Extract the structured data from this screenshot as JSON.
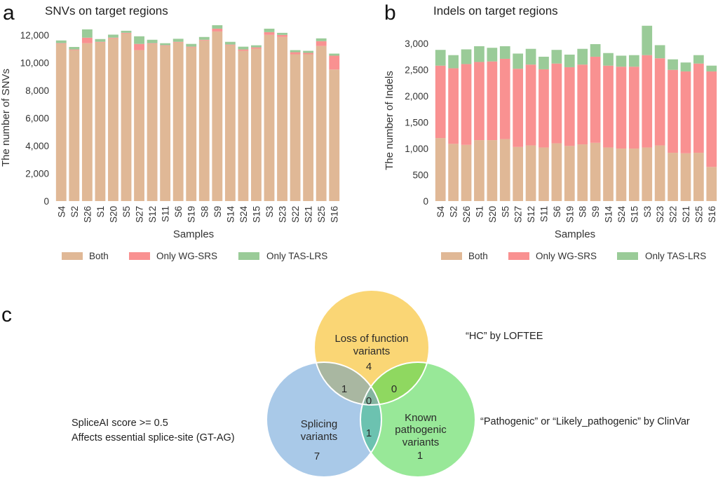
{
  "panels": {
    "a": "a",
    "b": "b",
    "c": "c"
  },
  "colors": {
    "both": "#e0b896",
    "only_wg_srs": "#f99191",
    "only_tas_lrs": "#9acb98",
    "venn_lof": "#fad675",
    "venn_splicing": "#a9c9e8",
    "venn_known": "#98e898",
    "venn_lof_splicing": "#a9b7a1",
    "venn_lof_known": "#8fd860",
    "venn_splicing_known": "#6cc2b0",
    "venn_center": "#84b4a0"
  },
  "chart_data": [
    {
      "id": "snvs",
      "type": "bar",
      "stacked": true,
      "title": "SNVs on target regions",
      "xlabel": "Samples",
      "ylabel": "The number of SNVs",
      "ylim": [
        0,
        12700
      ],
      "yticks": [
        0,
        2000,
        4000,
        6000,
        8000,
        10000,
        12000
      ],
      "ytick_labels": [
        "0",
        "2,000",
        "4,000",
        "6,000",
        "8,000",
        "10,000",
        "12,000"
      ],
      "categories": [
        "S4",
        "S2",
        "S26",
        "S1",
        "S20",
        "S5",
        "S27",
        "S12",
        "S11",
        "S6",
        "S19",
        "S8",
        "S9",
        "S14",
        "S24",
        "S15",
        "S3",
        "S23",
        "S22",
        "S21",
        "S25",
        "S16"
      ],
      "series": [
        {
          "name": "Both",
          "values": [
            11350,
            10900,
            11400,
            11450,
            11750,
            12100,
            10900,
            11350,
            11200,
            11450,
            11100,
            11600,
            12250,
            11250,
            10850,
            11000,
            12000,
            11850,
            10600,
            10600,
            11200,
            9500
          ]
        },
        {
          "name": "Only WG-SRS",
          "values": [
            50,
            50,
            400,
            50,
            50,
            50,
            450,
            50,
            50,
            50,
            50,
            50,
            200,
            50,
            100,
            100,
            200,
            150,
            150,
            100,
            350,
            1000
          ]
        },
        {
          "name": "Only TAS-LRS",
          "values": [
            200,
            180,
            600,
            200,
            220,
            150,
            550,
            250,
            150,
            220,
            200,
            200,
            250,
            200,
            200,
            150,
            250,
            150,
            150,
            150,
            200,
            150
          ]
        }
      ],
      "legend": {
        "position": "bottom",
        "entries": [
          "Both",
          "Only WG-SRS",
          "Only TAS-LRS"
        ]
      },
      "grid": false
    },
    {
      "id": "indels",
      "type": "bar",
      "stacked": true,
      "title": "Indels on target regions",
      "xlabel": "Samples",
      "ylabel": "The number of Indels",
      "ylim": [
        0,
        3350
      ],
      "yticks": [
        0,
        500,
        1000,
        1500,
        2000,
        2500,
        3000
      ],
      "ytick_labels": [
        "0",
        "500",
        "1,000",
        "1,500",
        "2,000",
        "2,500",
        "3,000"
      ],
      "categories": [
        "S4",
        "S2",
        "S26",
        "S1",
        "S20",
        "S5",
        "S27",
        "S12",
        "S11",
        "S6",
        "S19",
        "S8",
        "S9",
        "S14",
        "S24",
        "S15",
        "S3",
        "S23",
        "S22",
        "S21",
        "S25",
        "S16"
      ],
      "series": [
        {
          "name": "Both",
          "values": [
            1200,
            1090,
            1070,
            1160,
            1160,
            1180,
            1030,
            1060,
            1020,
            1100,
            1050,
            1080,
            1110,
            1020,
            1000,
            1000,
            1020,
            1060,
            920,
            910,
            920,
            650
          ]
        },
        {
          "name": "Only WG-SRS",
          "values": [
            1380,
            1440,
            1540,
            1490,
            1500,
            1530,
            1490,
            1540,
            1490,
            1520,
            1500,
            1520,
            1640,
            1560,
            1560,
            1560,
            1760,
            1660,
            1580,
            1560,
            1700,
            1820
          ]
        },
        {
          "name": "Only TAS-LRS",
          "values": [
            300,
            250,
            280,
            300,
            260,
            240,
            290,
            300,
            240,
            260,
            240,
            300,
            240,
            240,
            210,
            220,
            560,
            250,
            200,
            170,
            160,
            110
          ]
        }
      ],
      "legend": {
        "position": "bottom",
        "entries": [
          "Both",
          "Only WG-SRS",
          "Only TAS-LRS"
        ]
      },
      "grid": false
    }
  ],
  "venn": {
    "sets": {
      "lof": {
        "label_line1": "Loss of function",
        "label_line2": "variants",
        "only": "4",
        "criteria": "“HC” by LOFTEE"
      },
      "splicing": {
        "label_line1": "Splicing",
        "label_line2": "variants",
        "only": "7",
        "criteria_line1": "SpliceAI score >= 0.5",
        "criteria_line2": "Affects essential splice-site (GT-AG)"
      },
      "known": {
        "label_line1": "Known",
        "label_line2": "pathogenic",
        "label_line3": "variants",
        "only": "1",
        "criteria": "“Pathogenic” or “Likely_pathogenic” by ClinVar"
      }
    },
    "intersections": {
      "lof_splicing": "1",
      "lof_known": "0",
      "splicing_known": "1",
      "all": "0"
    }
  }
}
